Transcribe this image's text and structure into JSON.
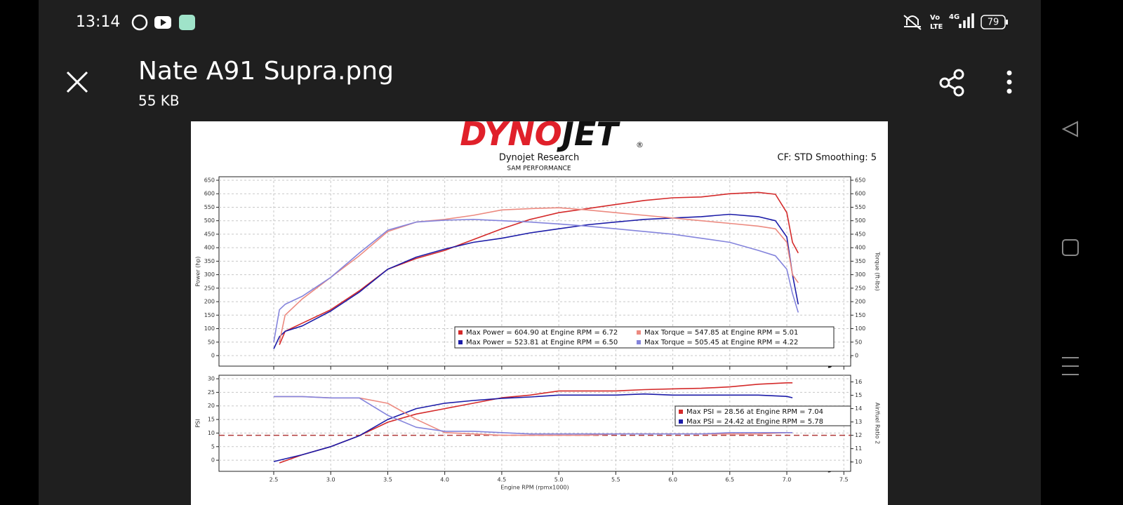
{
  "status_bar": {
    "time": "13:14",
    "volte": [
      "Vo",
      "LTE"
    ],
    "network": "4G",
    "battery": "79"
  },
  "header": {
    "title": "Nate A91 Supra.png",
    "size": "55 KB"
  },
  "image": {
    "logo": [
      "DYNO",
      "JET"
    ],
    "logo_mark": "®"
  },
  "chart_data": [
    {
      "type": "line",
      "title": "Dynojet Research",
      "subtitle": "SAM PERFORMANCE",
      "annotation": "CF: STD Smoothing: 5",
      "ylabel": "Power (hp)",
      "y2label": "Torque (ft-lbs)",
      "grid": true,
      "x": [
        2.5,
        2.55,
        2.6,
        2.75,
        3,
        3.25,
        3.5,
        3.75,
        4,
        4.25,
        4.5,
        4.75,
        5,
        5.25,
        5.5,
        5.75,
        6,
        6.25,
        6.5,
        6.75,
        6.9,
        7,
        7.05,
        7.1
      ],
      "xlim": [
        2.02,
        7.56
      ],
      "ylim": [
        -39,
        663
      ],
      "yticks": [
        0,
        50,
        100,
        150,
        200,
        250,
        300,
        350,
        400,
        450,
        500,
        550,
        600,
        650
      ],
      "y2lim": [
        -39,
        663
      ],
      "y2ticks": [
        0,
        50,
        100,
        150,
        200,
        250,
        300,
        350,
        400,
        450,
        500,
        550,
        600,
        650
      ],
      "series": [
        {
          "name": "Max Power = 604.90 at Engine RPM = 6.72",
          "color": "#d42a2a",
          "values": [
            null,
            40,
            90,
            120,
            170,
            240,
            320,
            360,
            390,
            430,
            470,
            505,
            530,
            545,
            560,
            575,
            585,
            588,
            600,
            605,
            598,
            530,
            420,
            380
          ]
        },
        {
          "name": "Max Power = 523.81 at Engine RPM = 6.50",
          "color": "#1c1ca8",
          "values": [
            25,
            70,
            90,
            110,
            165,
            235,
            320,
            365,
            395,
            420,
            435,
            455,
            470,
            485,
            495,
            505,
            510,
            515,
            524,
            515,
            500,
            440,
            300,
            190
          ]
        },
        {
          "name": "Max Torque = 547.85 at Engine RPM = 5.01",
          "color": "#ec8a80",
          "axis": "y2",
          "values": [
            null,
            50,
            150,
            210,
            290,
            370,
            460,
            495,
            505,
            520,
            540,
            545,
            548,
            540,
            530,
            520,
            510,
            500,
            490,
            480,
            470,
            420,
            300,
            270
          ]
        },
        {
          "name": "Max Torque = 505.45 at Engine RPM = 4.22",
          "color": "#8484dc",
          "axis": "y2",
          "values": [
            50,
            170,
            190,
            220,
            290,
            380,
            465,
            495,
            502,
            505,
            500,
            495,
            488,
            480,
            470,
            460,
            450,
            435,
            420,
            390,
            370,
            320,
            230,
            160
          ]
        }
      ]
    },
    {
      "type": "line",
      "xlabel": "Engine RPM (rpmx1000)",
      "ylabel": "PSI",
      "y2label": "Air/fuel Ratio 2",
      "grid": true,
      "x": [
        2.5,
        2.55,
        2.75,
        3,
        3.25,
        3.5,
        3.75,
        4,
        4.25,
        4.5,
        4.75,
        5,
        5.25,
        5.5,
        5.75,
        6,
        6.25,
        6.5,
        6.75,
        7,
        7.05
      ],
      "xlim": [
        2.02,
        7.56
      ],
      "xticks": [
        2.5,
        {
          "value": 3,
          "label": "3.0"
        },
        3.5,
        {
          "value": 4,
          "label": "4.0"
        },
        4.5,
        {
          "value": 5,
          "label": "5.0"
        },
        5.5,
        {
          "value": 6,
          "label": "6.0"
        },
        6.5,
        {
          "value": 7,
          "label": "7.0"
        },
        7.5
      ],
      "ylim": [
        -4.1,
        31.3
      ],
      "yticks": [
        0,
        5,
        10,
        15,
        20,
        25,
        30
      ],
      "y2lim": [
        9.3,
        16.5
      ],
      "y2ticks": [
        10,
        11,
        12,
        13,
        14,
        15,
        16
      ],
      "reference_line": {
        "value": 12,
        "axis": "y2",
        "color": "#b03a3a"
      },
      "series": [
        {
          "name": "Max PSI = 28.56 at Engine RPM = 7.04",
          "color": "#d42a2a",
          "values": [
            null,
            -1,
            2,
            5,
            9,
            14,
            17,
            19,
            21,
            23,
            24,
            25.5,
            25.5,
            25.5,
            26,
            26.3,
            26.5,
            27,
            28,
            28.5,
            28.5
          ]
        },
        {
          "name": "Max PSI = 24.42 at Engine RPM = 5.78",
          "color": "#1c1ca8",
          "values": [
            -0.5,
            0,
            2,
            5,
            9,
            15,
            19,
            21,
            22,
            22.8,
            23.3,
            24,
            24,
            24,
            24.4,
            24,
            24,
            24,
            24,
            23.5,
            23
          ]
        },
        {
          "color": "#ec8a80",
          "axis": "y2",
          "values": [
            14.9,
            14.9,
            14.9,
            14.8,
            14.8,
            14.4,
            13.2,
            12.2,
            12.1,
            12,
            12,
            12,
            12,
            12.1,
            12.1,
            12.1,
            12.1,
            12.1,
            12.1,
            12.2,
            12.2
          ]
        },
        {
          "color": "#8484dc",
          "axis": "y2",
          "values": [
            14.9,
            14.9,
            14.9,
            14.8,
            14.8,
            13.5,
            12.6,
            12.3,
            12.3,
            12.2,
            12.1,
            12.1,
            12.1,
            12.1,
            12.1,
            12.1,
            12.1,
            12.2,
            12.2,
            12.2,
            12.2
          ]
        }
      ]
    }
  ]
}
